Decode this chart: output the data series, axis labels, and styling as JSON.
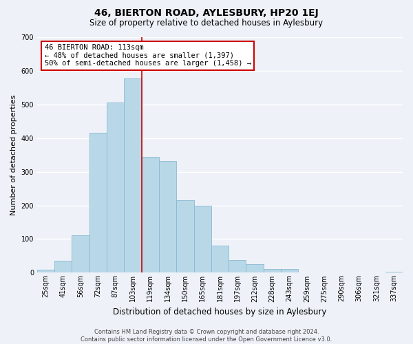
{
  "title1": "46, BIERTON ROAD, AYLESBURY, HP20 1EJ",
  "title2": "Size of property relative to detached houses in Aylesbury",
  "xlabel": "Distribution of detached houses by size in Aylesbury",
  "ylabel": "Number of detached properties",
  "categories": [
    "25sqm",
    "41sqm",
    "56sqm",
    "72sqm",
    "87sqm",
    "103sqm",
    "119sqm",
    "134sqm",
    "150sqm",
    "165sqm",
    "181sqm",
    "197sqm",
    "212sqm",
    "228sqm",
    "243sqm",
    "259sqm",
    "275sqm",
    "290sqm",
    "306sqm",
    "321sqm",
    "337sqm"
  ],
  "values": [
    8,
    35,
    112,
    415,
    505,
    578,
    345,
    333,
    215,
    200,
    80,
    37,
    25,
    12,
    12,
    0,
    0,
    0,
    0,
    0,
    3
  ],
  "bar_color": "#b8d8e8",
  "highlight_line_color": "#cc0000",
  "highlight_line_index": 5,
  "annotation_title": "46 BIERTON ROAD: 113sqm",
  "annotation_line1": "← 48% of detached houses are smaller (1,397)",
  "annotation_line2": "50% of semi-detached houses are larger (1,458) →",
  "annotation_box_color": "#ffffff",
  "annotation_box_edge_color": "#cc0000",
  "ylim": [
    0,
    700
  ],
  "yticks": [
    0,
    100,
    200,
    300,
    400,
    500,
    600,
    700
  ],
  "footer_line1": "Contains HM Land Registry data © Crown copyright and database right 2024.",
  "footer_line2": "Contains public sector information licensed under the Open Government Licence v3.0.",
  "background_color": "#eef2f8",
  "grid_color": "#ffffff",
  "title1_fontsize": 10,
  "title2_fontsize": 8.5,
  "ylabel_fontsize": 8,
  "xlabel_fontsize": 8.5,
  "tick_fontsize": 7,
  "annotation_fontsize": 7.5,
  "footer_fontsize": 6
}
